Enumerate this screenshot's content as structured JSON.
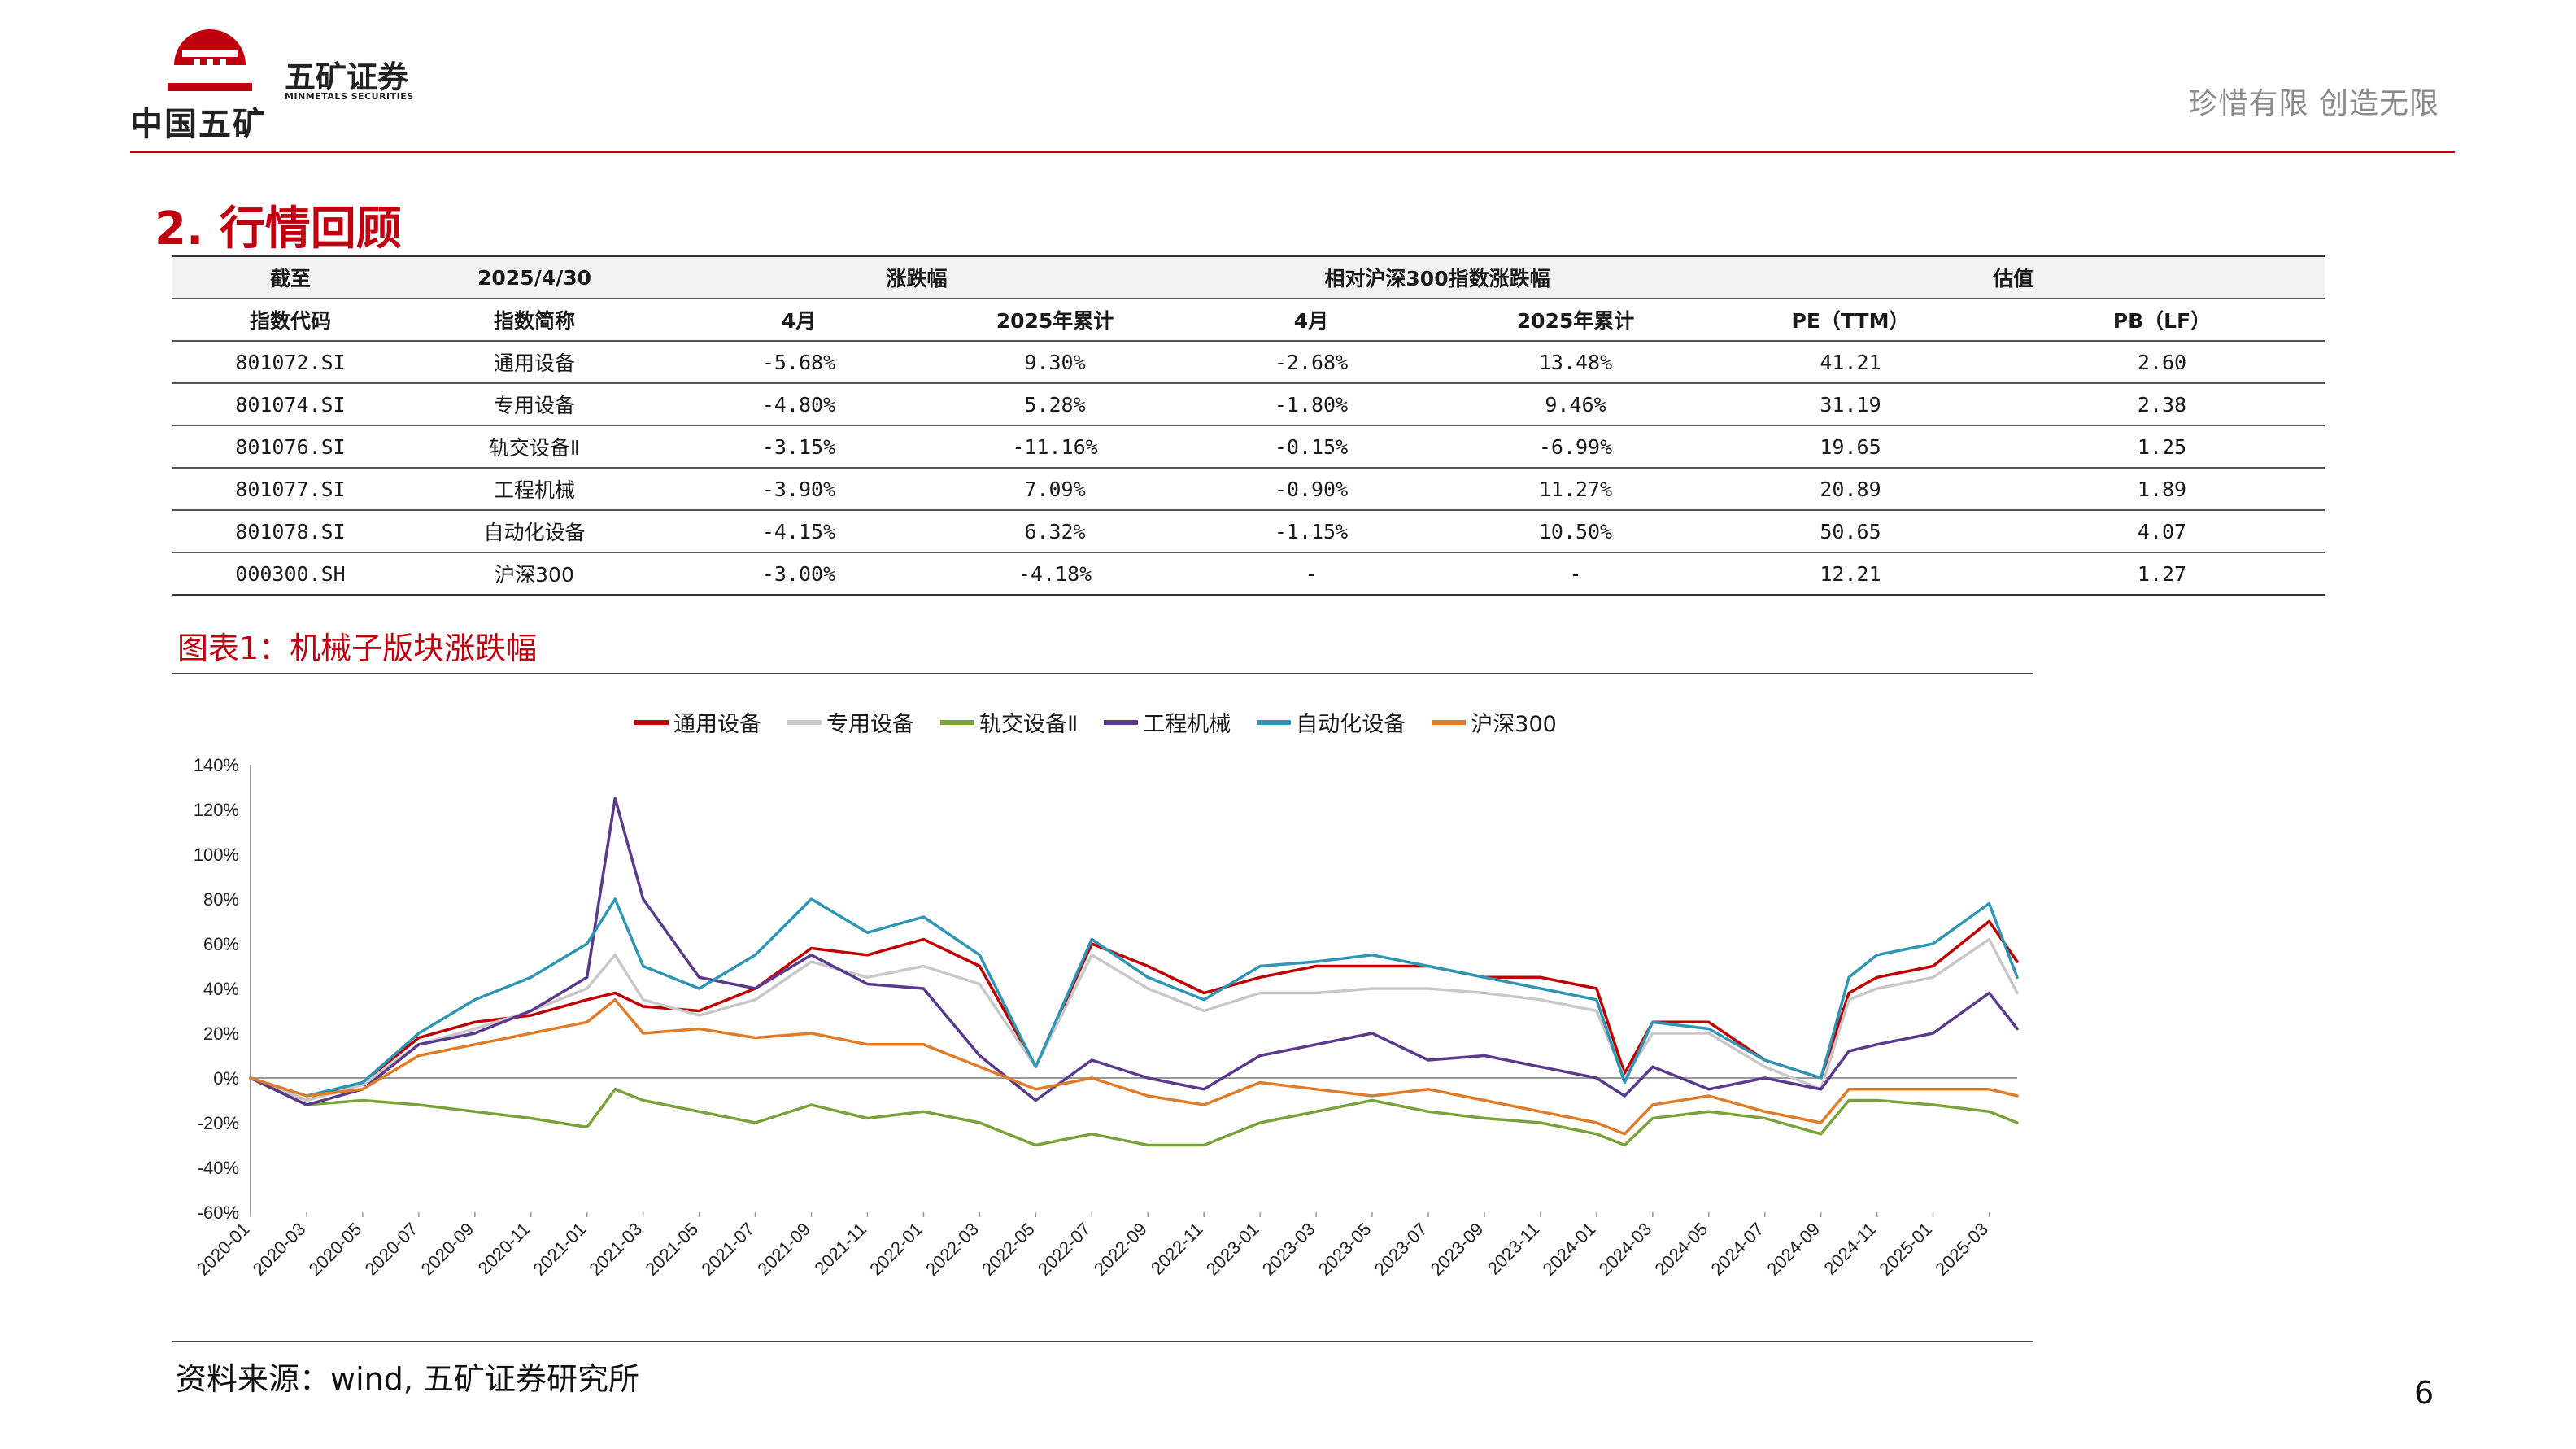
{
  "header": {
    "logo_group_name": "中国五矿",
    "logo_company_cn": "五矿证券",
    "logo_company_en": "MINMETALS SECURITIES",
    "slogan": "珍惜有限  创造无限"
  },
  "section_title": "2. 行情回顾",
  "table": {
    "row1": [
      "截至",
      "2025/4/30",
      "涨跌幅",
      "相对沪深300指数涨跌幅",
      "估值"
    ],
    "row2": [
      "指数代码",
      "指数简称",
      "4月",
      "2025年累计",
      "4月",
      "2025年累计",
      "PE（TTM）",
      "PB（LF）"
    ],
    "rows": [
      [
        "801072.SI",
        "通用设备",
        "-5.68%",
        "9.30%",
        "-2.68%",
        "13.48%",
        "41.21",
        "2.60"
      ],
      [
        "801074.SI",
        "专用设备",
        "-4.80%",
        "5.28%",
        "-1.80%",
        "9.46%",
        "31.19",
        "2.38"
      ],
      [
        "801076.SI",
        "轨交设备Ⅱ",
        "-3.15%",
        "-11.16%",
        "-0.15%",
        "-6.99%",
        "19.65",
        "1.25"
      ],
      [
        "801077.SI",
        "工程机械",
        "-3.90%",
        "7.09%",
        "-0.90%",
        "11.27%",
        "20.89",
        "1.89"
      ],
      [
        "801078.SI",
        "自动化设备",
        "-4.15%",
        "6.32%",
        "-1.15%",
        "10.50%",
        "50.65",
        "4.07"
      ],
      [
        "000300.SH",
        "沪深300",
        "-3.00%",
        "-4.18%",
        "-",
        "-",
        "12.21",
        "1.27"
      ]
    ]
  },
  "figure_title": "图表1：机械子版块涨跌幅",
  "source": "资料来源：wind, 五矿证券研究所",
  "page_number": "6",
  "chart_data": {
    "type": "line",
    "title": "",
    "xlabel": "",
    "ylabel": "",
    "ylim": [
      -60,
      140
    ],
    "yticks": [
      "140%",
      "120%",
      "100%",
      "80%",
      "60%",
      "40%",
      "20%",
      "0%",
      "-20%",
      "-40%",
      "-60%"
    ],
    "ytick_values": [
      140,
      120,
      100,
      80,
      60,
      40,
      20,
      0,
      -20,
      -40,
      -60
    ],
    "xticks": [
      "2020-01",
      "2020-03",
      "2020-05",
      "2020-07",
      "2020-09",
      "2020-11",
      "2021-01",
      "2021-03",
      "2021-05",
      "2021-07",
      "2021-09",
      "2021-11",
      "2022-01",
      "2022-03",
      "2022-05",
      "2022-07",
      "2022-09",
      "2022-11",
      "2023-01",
      "2023-03",
      "2023-05",
      "2023-07",
      "2023-09",
      "2023-11",
      "2024-01",
      "2024-03",
      "2024-05",
      "2024-07",
      "2024-09",
      "2024-11",
      "2025-01",
      "2025-03"
    ],
    "x": [
      "2020-01",
      "2020-03",
      "2020-05",
      "2020-07",
      "2020-09",
      "2020-11",
      "2021-01",
      "2021-02",
      "2021-03",
      "2021-05",
      "2021-07",
      "2021-09",
      "2021-11",
      "2022-01",
      "2022-03",
      "2022-05",
      "2022-07",
      "2022-09",
      "2022-11",
      "2023-01",
      "2023-03",
      "2023-05",
      "2023-07",
      "2023-09",
      "2023-11",
      "2024-01",
      "2024-02",
      "2024-03",
      "2024-05",
      "2024-07",
      "2024-09",
      "2024-10",
      "2024-11",
      "2025-01",
      "2025-03",
      "2025-04"
    ],
    "legend_position": "top-center",
    "grid": false,
    "series": [
      {
        "name": "通用设备",
        "color": "#c00000",
        "values": [
          0,
          -10,
          -2,
          18,
          25,
          28,
          35,
          38,
          32,
          30,
          40,
          58,
          55,
          62,
          50,
          5,
          60,
          50,
          38,
          45,
          50,
          50,
          50,
          45,
          45,
          40,
          2,
          25,
          25,
          8,
          0,
          38,
          45,
          50,
          70,
          52
        ]
      },
      {
        "name": "专用设备",
        "color": "#c8c8c8",
        "values": [
          0,
          -10,
          -3,
          15,
          22,
          30,
          40,
          55,
          35,
          28,
          35,
          52,
          45,
          50,
          42,
          5,
          55,
          40,
          30,
          38,
          38,
          40,
          40,
          38,
          35,
          30,
          0,
          20,
          20,
          5,
          -5,
          35,
          40,
          45,
          62,
          38
        ]
      },
      {
        "name": "轨交设备Ⅱ",
        "color": "#7aa23a",
        "values": [
          0,
          -12,
          -10,
          -12,
          -15,
          -18,
          -22,
          -5,
          -10,
          -15,
          -20,
          -12,
          -18,
          -15,
          -20,
          -30,
          -25,
          -30,
          -30,
          -20,
          -15,
          -10,
          -15,
          -18,
          -20,
          -25,
          -30,
          -18,
          -15,
          -18,
          -25,
          -10,
          -10,
          -12,
          -15,
          -20
        ]
      },
      {
        "name": "工程机械",
        "color": "#5b3a8e",
        "values": [
          0,
          -12,
          -5,
          15,
          20,
          30,
          45,
          125,
          80,
          45,
          40,
          55,
          42,
          40,
          10,
          -10,
          8,
          0,
          -5,
          10,
          15,
          20,
          8,
          10,
          5,
          0,
          -8,
          5,
          -5,
          0,
          -5,
          12,
          15,
          20,
          38,
          22
        ]
      },
      {
        "name": "自动化设备",
        "color": "#2e96b4",
        "values": [
          0,
          -8,
          -2,
          20,
          35,
          45,
          60,
          80,
          50,
          40,
          55,
          80,
          65,
          72,
          55,
          5,
          62,
          45,
          35,
          50,
          52,
          55,
          50,
          45,
          40,
          35,
          -2,
          25,
          22,
          8,
          0,
          45,
          55,
          60,
          78,
          45
        ]
      },
      {
        "name": "沪深300",
        "color": "#e07b28",
        "values": [
          0,
          -8,
          -5,
          10,
          15,
          20,
          25,
          35,
          20,
          22,
          18,
          20,
          15,
          15,
          5,
          -5,
          0,
          -8,
          -12,
          -2,
          -5,
          -8,
          -5,
          -10,
          -15,
          -20,
          -25,
          -12,
          -8,
          -15,
          -20,
          -5,
          -5,
          -5,
          -5,
          -8
        ]
      }
    ]
  }
}
